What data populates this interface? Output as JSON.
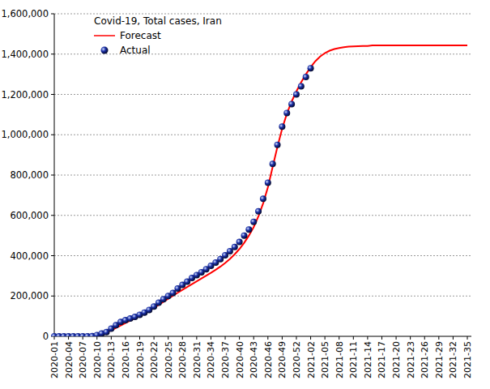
{
  "chart_data": {
    "type": "line",
    "title": "Covid-19, Total cases, Iran",
    "categories": [
      "2020-01",
      null,
      null,
      "2020-04",
      null,
      null,
      "2020-07",
      null,
      null,
      "2020-10",
      null,
      null,
      "2020-13",
      null,
      null,
      "2020-16",
      null,
      null,
      "2020-19",
      null,
      null,
      "2020-22",
      null,
      null,
      "2020-25",
      null,
      null,
      "2020-28",
      null,
      null,
      "2020-31",
      null,
      null,
      "2020-34",
      null,
      null,
      "2020-37",
      null,
      null,
      "2020-40",
      null,
      null,
      "2020-43",
      null,
      null,
      "2020-46",
      null,
      null,
      "2020-49",
      null,
      null,
      "2020-52",
      null,
      null,
      "2021-02",
      null,
      null,
      "2021-05",
      null,
      null,
      "2021-08",
      null,
      null,
      "2021-11",
      null,
      null,
      "2021-14",
      null,
      null,
      "2021-17",
      null,
      null,
      "2021-20",
      null,
      null,
      "2021-23",
      null,
      null,
      "2021-26",
      null,
      null,
      "2021-29",
      null,
      null,
      "2021-32",
      null,
      null,
      "2021-35"
    ],
    "series": [
      {
        "name": "Forecast",
        "type": "line",
        "color": "#ff0000",
        "line_style": "solid",
        "values": [
          0,
          0,
          0,
          0,
          0,
          0,
          0,
          0,
          1000,
          5000,
          12000,
          20000,
          30000,
          42000,
          54000,
          66000,
          78000,
          90000,
          102000,
          114000,
          127000,
          141000,
          156000,
          171000,
          186000,
          201000,
          216000,
          231000,
          245000,
          259000,
          273000,
          287000,
          301000,
          315000,
          330000,
          346000,
          364000,
          384000,
          407000,
          433000,
          464000,
          500000,
          542000,
          595000,
          660000,
          740000,
          840000,
          940000,
          1030000,
          1105000,
          1165000,
          1215000,
          1260000,
          1300000,
          1335000,
          1365000,
          1388000,
          1405000,
          1417000,
          1425000,
          1430000,
          1434000,
          1437000,
          1438000,
          1439000,
          1440000,
          1440000,
          1443000,
          1443000,
          1443000,
          1443000,
          1443000,
          1443000,
          1443000,
          1443000,
          1443000,
          1443000,
          1443000,
          1443000,
          1443000,
          1443000,
          1443000,
          1443000,
          1443000,
          1443000,
          1443000,
          1443000,
          1443000
        ]
      },
      {
        "name": "Actual",
        "type": "scatter",
        "color": "#1a2fa8",
        "marker": "circle",
        "values": [
          0,
          0,
          0,
          0,
          0,
          0,
          0,
          0,
          600,
          6500,
          14000,
          21000,
          38000,
          55000,
          71000,
          80000,
          88000,
          96000,
          107000,
          118000,
          131000,
          148000,
          167000,
          184000,
          200000,
          215000,
          237000,
          255000,
          271000,
          289000,
          304000,
          318000,
          333000,
          350000,
          366000,
          383000,
          402000,
          422000,
          443000,
          468000,
          500000,
          530000,
          568000,
          620000,
          682000,
          762000,
          855000,
          950000,
          1040000,
          1108000,
          1152000,
          1200000,
          1240000,
          1286000,
          1330000,
          null,
          null,
          null,
          null,
          null,
          null,
          null,
          null,
          null,
          null,
          null,
          null,
          null,
          null,
          null,
          null,
          null,
          null,
          null,
          null,
          null,
          null,
          null,
          null,
          null,
          null,
          null,
          null,
          null,
          null,
          null,
          null,
          null
        ]
      }
    ],
    "ylim": [
      0,
      1600000
    ],
    "yticks": [
      0,
      {
        "value": 200000,
        "label": "200,000"
      },
      {
        "value": 400000,
        "label": "400,000"
      },
      {
        "value": 600000,
        "label": "600,000"
      },
      {
        "value": 800000,
        "label": "800,000"
      },
      {
        "value": 1000000,
        "label": "1,000,000"
      },
      {
        "value": 1200000,
        "label": "1,200,000"
      },
      {
        "value": 1400000,
        "label": "1,400,000"
      },
      {
        "value": 1600000,
        "label": "1,600,000"
      }
    ],
    "grid": true,
    "legend": "upper-left"
  }
}
